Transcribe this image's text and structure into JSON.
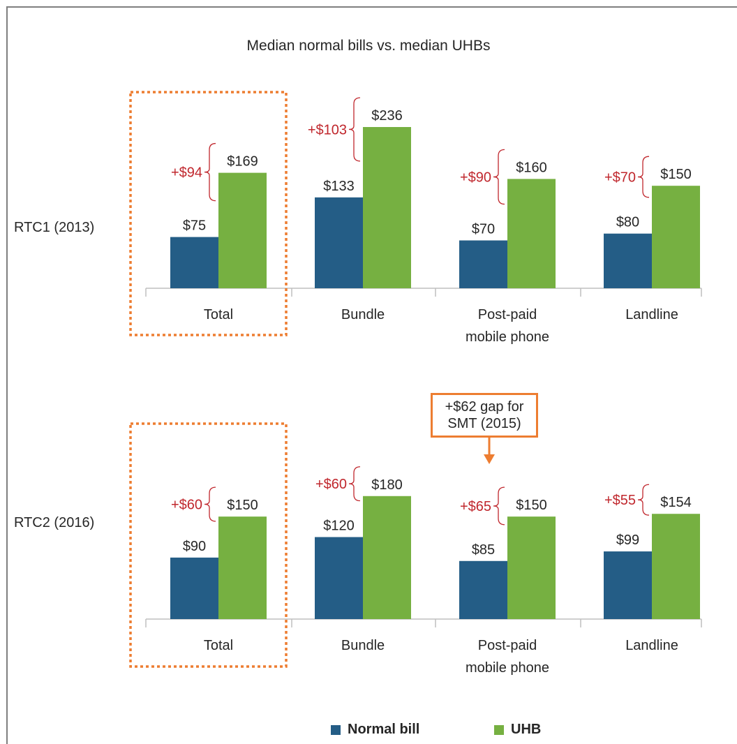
{
  "title": "Median normal bills vs. median UHBs",
  "colors": {
    "normal": "#245d86",
    "uhb": "#76b041",
    "gap": "#c0272d",
    "highlight": "#ed7d31"
  },
  "legend": {
    "normal_label": "Normal bill",
    "uhb_label": "UHB"
  },
  "callout": {
    "line1": "+$62 gap for",
    "line2": "SMT (2015)"
  },
  "chart_data": [
    {
      "type": "bar",
      "row_label": "RTC1 (2013)",
      "categories": [
        "Total",
        "Bundle",
        "Post-paid mobile phone",
        "Landline"
      ],
      "category_lines": [
        [
          "Total"
        ],
        [
          "Bundle"
        ],
        [
          "Post-paid",
          "mobile phone"
        ],
        [
          "Landline"
        ]
      ],
      "series": [
        {
          "name": "Normal bill",
          "values": [
            75,
            133,
            70,
            80
          ],
          "labels": [
            "$75",
            "$133",
            "$70",
            "$80"
          ]
        },
        {
          "name": "UHB",
          "values": [
            169,
            236,
            160,
            150
          ],
          "labels": [
            "$169",
            "$236",
            "$160",
            "$150"
          ]
        }
      ],
      "gaps": [
        "+$94",
        "+$103",
        "+$90",
        "+$70"
      ],
      "highlighted_category": "Total"
    },
    {
      "type": "bar",
      "row_label": "RTC2 (2016)",
      "categories": [
        "Total",
        "Bundle",
        "Post-paid mobile phone",
        "Landline"
      ],
      "category_lines": [
        [
          "Total"
        ],
        [
          "Bundle"
        ],
        [
          "Post-paid",
          "mobile phone"
        ],
        [
          "Landline"
        ]
      ],
      "series": [
        {
          "name": "Normal bill",
          "values": [
            90,
            120,
            85,
            99
          ],
          "labels": [
            "$90",
            "$120",
            "$85",
            "$99"
          ]
        },
        {
          "name": "UHB",
          "values": [
            150,
            180,
            150,
            154
          ],
          "labels": [
            "$150",
            "$180",
            "$150",
            "$154"
          ]
        }
      ],
      "gaps": [
        "+$60",
        "+$60",
        "+$65",
        "+$55"
      ],
      "highlighted_category": "Total"
    }
  ]
}
